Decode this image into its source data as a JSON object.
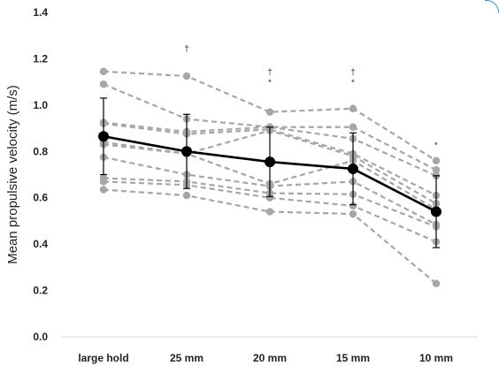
{
  "chart_data": {
    "type": "line",
    "ylabel": "Mean propulsive velocity (m/s)",
    "xlabel": "",
    "categories": [
      "large hold",
      "25 mm",
      "20 mm",
      "15 mm",
      "10 mm"
    ],
    "ylim": [
      0,
      1.4
    ],
    "yticks": [
      "0.0",
      "0.2",
      "0.4",
      "0.6",
      "0.8",
      "1.0",
      "1.2",
      "1.4"
    ],
    "grid": false,
    "mean_series": {
      "values": [
        0.865,
        0.8,
        0.755,
        0.725,
        0.54
      ],
      "error": [
        0.165,
        0.16,
        0.15,
        0.155,
        0.155
      ],
      "color": "#000000"
    },
    "individual_series_color": "#a6a6a6",
    "individual_series": [
      [
        1.145,
        1.125,
        0.97,
        0.985,
        0.76
      ],
      [
        1.09,
        0.94,
        0.905,
        0.905,
        0.72
      ],
      [
        0.925,
        0.885,
        0.905,
        0.855,
        0.695
      ],
      [
        0.92,
        0.875,
        0.895,
        0.79,
        0.61
      ],
      [
        0.84,
        0.79,
        0.89,
        0.78,
        0.575
      ],
      [
        0.83,
        0.79,
        0.66,
        0.76,
        0.55
      ],
      [
        0.775,
        0.7,
        0.65,
        0.67,
        0.485
      ],
      [
        0.685,
        0.67,
        0.62,
        0.615,
        0.475
      ],
      [
        0.67,
        0.655,
        0.6,
        0.565,
        0.41
      ],
      [
        0.635,
        0.61,
        0.54,
        0.53,
        0.23
      ]
    ],
    "annotations": [
      {
        "category": "25 mm",
        "text": "†",
        "y_value": 1.245
      },
      {
        "category": "20 mm",
        "text": "†",
        "y_value": 1.145
      },
      {
        "category": "20 mm",
        "text": "*",
        "y_value": 1.1
      },
      {
        "category": "15 mm",
        "text": "†",
        "y_value": 1.145
      },
      {
        "category": "15 mm",
        "text": "*",
        "y_value": 1.1
      },
      {
        "category": "10 mm",
        "text": "*",
        "y_value": 0.83
      }
    ]
  }
}
